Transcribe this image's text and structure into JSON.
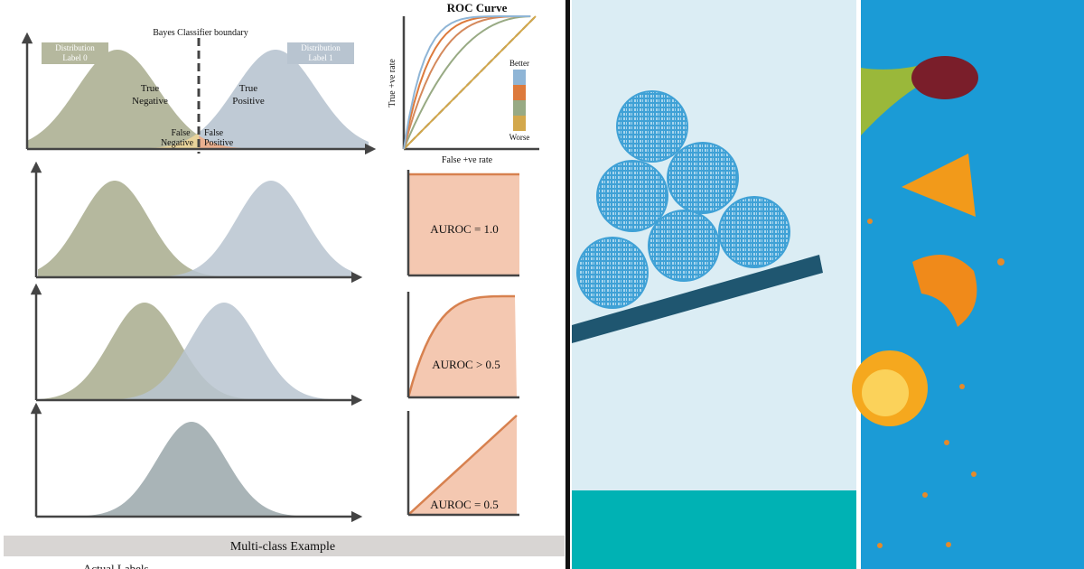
{
  "diagram": {
    "boundary": "Bayes Classifier boundary",
    "label0": [
      "Distribution",
      "Label 0"
    ],
    "label1": [
      "Distribution",
      "Label 1"
    ],
    "true_negative": [
      "True",
      "Negative"
    ],
    "true_positive": [
      "True",
      "Positive"
    ],
    "false_negative": [
      "False",
      "Negative"
    ],
    "false_positive": [
      "False",
      "Positive"
    ],
    "roc": {
      "title": "ROC Curve",
      "ylabel": "True +ve rate",
      "xlabel": "False +ve rate",
      "better": "Better",
      "worse": "Worse"
    },
    "auroc": [
      "AUROC = 1.0",
      "AUROC > 0.5",
      "AUROC = 0.5"
    ],
    "multiclass": "Multi-class Example",
    "actual_labels": "Actual Labels"
  }
}
